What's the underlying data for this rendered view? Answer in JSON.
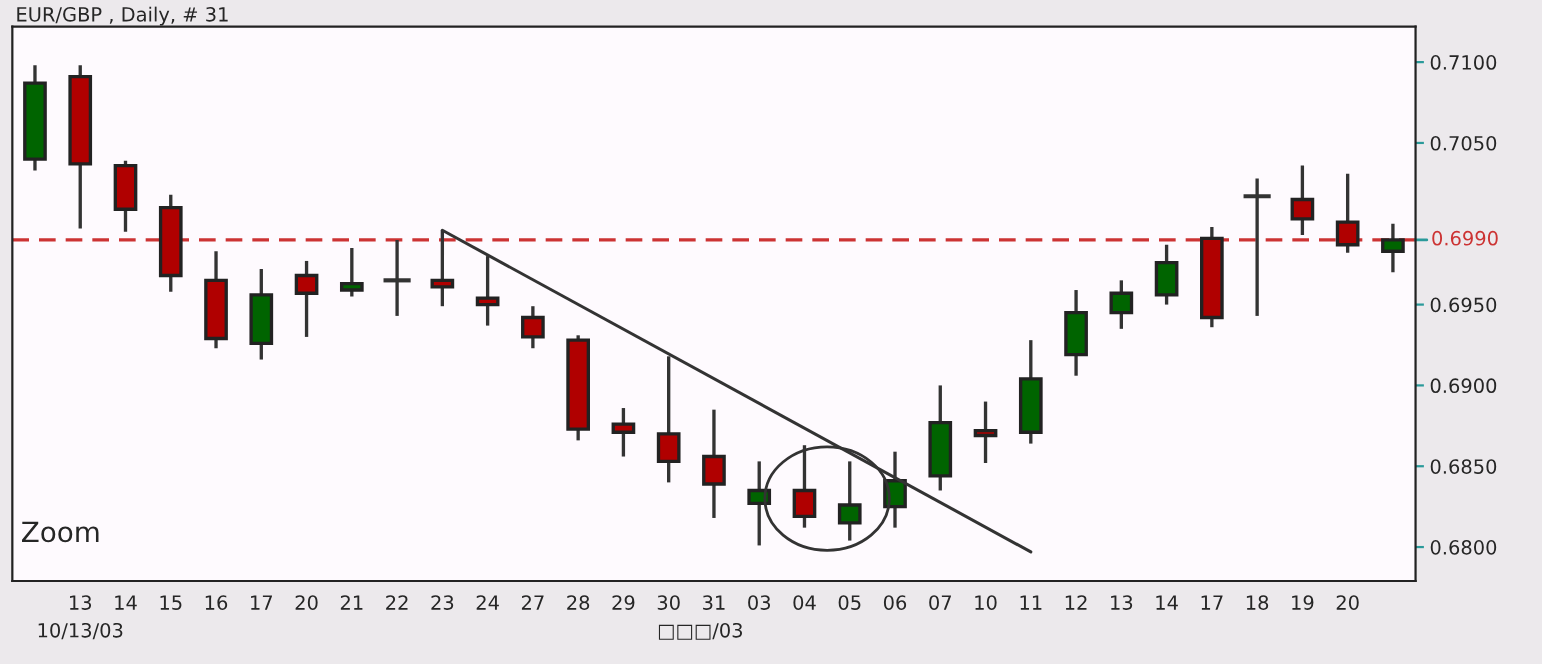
{
  "chart_data": {
    "type": "candlestick",
    "title": "EUR/GBP , Daily, # 31",
    "categories": [
      null,
      "13",
      "14",
      "15",
      "16",
      "17",
      "20",
      "21",
      "22",
      "23",
      "24",
      "27",
      "28",
      "29",
      "30",
      "31",
      "03",
      "04",
      "05",
      "06",
      "07",
      "10",
      "11",
      "12",
      "13",
      "14",
      "17",
      "18",
      "19",
      "20",
      null
    ],
    "ohlc": [
      [
        0.704,
        0.7098,
        0.7033,
        0.7087
      ],
      [
        0.7091,
        0.7098,
        0.6997,
        0.7037
      ],
      [
        0.7036,
        0.7039,
        0.6995,
        0.7009
      ],
      [
        0.701,
        0.7018,
        0.6958,
        0.6968
      ],
      [
        0.6965,
        0.6983,
        0.6923,
        0.6929
      ],
      [
        0.6926,
        0.6972,
        0.6916,
        0.6956
      ],
      [
        0.6968,
        0.6977,
        0.693,
        0.6957
      ],
      [
        0.6959,
        0.6985,
        0.6955,
        0.6963
      ],
      [
        0.6965,
        0.699,
        0.6943,
        0.6965
      ],
      [
        0.6965,
        0.6996,
        0.6949,
        0.6961
      ],
      [
        0.6954,
        0.698,
        0.6937,
        0.695
      ],
      [
        0.6942,
        0.6949,
        0.6923,
        0.693
      ],
      [
        0.6928,
        0.6931,
        0.6866,
        0.6873
      ],
      [
        0.6876,
        0.6886,
        0.6856,
        0.6871
      ],
      [
        0.687,
        0.6918,
        0.684,
        0.6853
      ],
      [
        0.6856,
        0.6885,
        0.6818,
        0.6839
      ],
      [
        0.6827,
        0.6853,
        0.6801,
        0.6835
      ],
      [
        0.6835,
        0.6863,
        0.6812,
        0.6819
      ],
      [
        0.6815,
        0.6853,
        0.6804,
        0.6826
      ],
      [
        0.6825,
        0.6859,
        0.6812,
        0.6841
      ],
      [
        0.6844,
        0.69,
        0.6835,
        0.6877
      ],
      [
        0.6872,
        0.689,
        0.6852,
        0.6869
      ],
      [
        0.6871,
        0.6928,
        0.6864,
        0.6904
      ],
      [
        0.6919,
        0.6959,
        0.6906,
        0.6945
      ],
      [
        0.6945,
        0.6965,
        0.6935,
        0.6957
      ],
      [
        0.6956,
        0.6987,
        0.695,
        0.6976
      ],
      [
        0.6991,
        0.6998,
        0.6936,
        0.6942
      ],
      [
        0.7017,
        0.7028,
        0.6943,
        0.7017
      ],
      [
        0.7015,
        0.7036,
        0.6993,
        0.7003
      ],
      [
        0.7001,
        0.7031,
        0.6982,
        0.6987
      ],
      [
        0.6983,
        0.7,
        0.697,
        0.699
      ]
    ],
    "colors": [
      "#006400",
      "#b00000",
      "#b00000",
      "#b00000",
      "#b00000",
      "#006400",
      "#b00000",
      "#006400",
      "#333333",
      "#b00000",
      "#b00000",
      "#b00000",
      "#b00000",
      "#b00000",
      "#b00000",
      "#b00000",
      "#006400",
      "#b00000",
      "#006400",
      "#006400",
      "#006400",
      "#b00000",
      "#006400",
      "#006400",
      "#006400",
      "#006400",
      "#b00000",
      "#333333",
      "#b00000",
      "#b00000",
      "#006400"
    ],
    "series": [
      {
        "type": "line",
        "x": [
          "23",
          "11"
        ],
        "values": [
          0.6996,
          0.6797
        ],
        "color": "#333333"
      }
    ],
    "ylim": [
      0.6779,
      0.7122
    ],
    "yticks": [
      {
        "value": 0.68,
        "label": "0.6800"
      },
      {
        "value": 0.685,
        "label": "0.6850"
      },
      {
        "value": 0.69,
        "label": "0.6900"
      },
      {
        "value": 0.695,
        "label": "0.6950"
      },
      {
        "value": 0.705,
        "label": "0.7050"
      },
      {
        "value": 0.71,
        "label": "0.7100"
      }
    ],
    "ref_lines": [
      {
        "axis": "y",
        "value": 0.699,
        "label": "0.6990",
        "color": "#cc3333",
        "line_style": "dashed"
      }
    ],
    "annotations": [
      "Zoom",
      "10/13/03",
      "□□□/03"
    ],
    "grid": false,
    "legend": false
  }
}
